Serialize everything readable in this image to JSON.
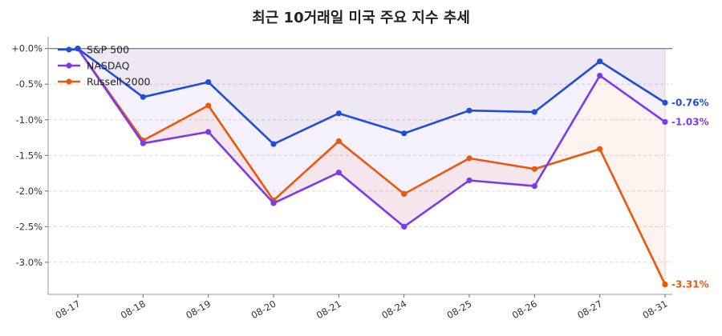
{
  "chart_data": {
    "type": "line",
    "title": "최근 10거래일 미국 주요 지수 추세",
    "categories": [
      "08-17",
      "08-18",
      "08-19",
      "08-20",
      "08-21",
      "08-24",
      "08-25",
      "08-26",
      "08-27",
      "08-31"
    ],
    "yticks": [
      "+0.0%",
      "-0.5%",
      "-1.0%",
      "-1.5%",
      "-2.0%",
      "-2.5%",
      "-3.0%"
    ],
    "ylim": [
      -3.45,
      0.12
    ],
    "grid": "horizontal-dashed",
    "legend_position": "top-left",
    "series": [
      {
        "name": "S&P 500",
        "color": "#1f4ed8",
        "values": [
          0.0,
          -0.68,
          -0.47,
          -1.34,
          -0.91,
          -1.19,
          -0.87,
          -0.89,
          -0.18,
          -0.76
        ],
        "end_label": "-0.76%"
      },
      {
        "name": "NASDAQ",
        "color": "#7c3aed",
        "values": [
          0.0,
          -1.33,
          -1.17,
          -2.17,
          -1.74,
          -2.5,
          -1.85,
          -1.93,
          -0.38,
          -1.03
        ],
        "end_label": "-1.03%"
      },
      {
        "name": "Russell 2000",
        "color": "#ea580c",
        "values": [
          0.0,
          -1.29,
          -0.8,
          -2.13,
          -1.3,
          -2.04,
          -1.54,
          -1.69,
          -1.41,
          -3.31
        ],
        "end_label": "-3.31%"
      }
    ]
  }
}
